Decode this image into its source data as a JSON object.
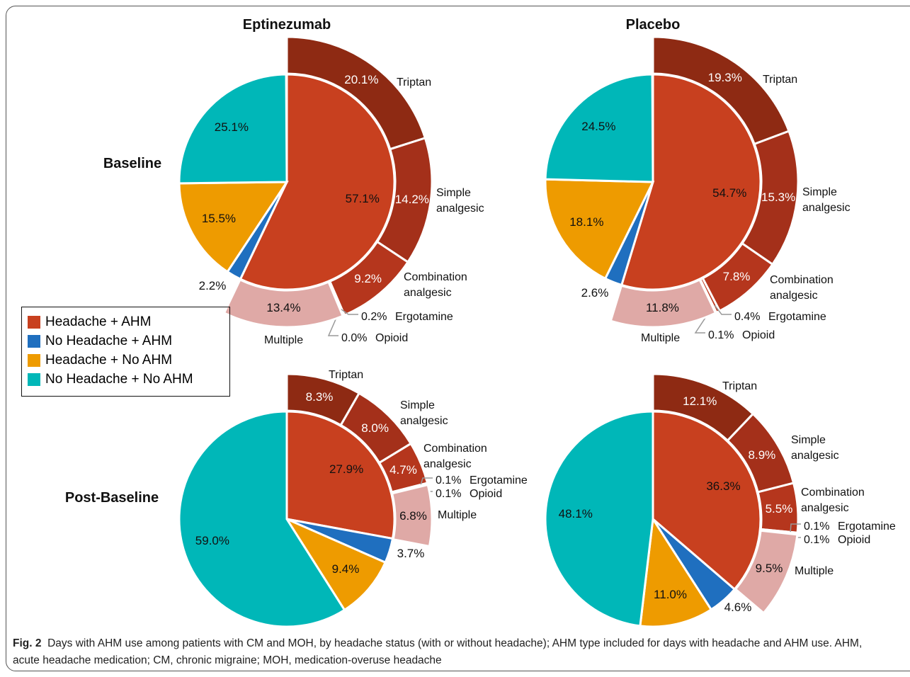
{
  "chart_data": {
    "type": "pie-of-pie",
    "columns": [
      "Eptinezumab",
      "Placebo"
    ],
    "rows": [
      "Baseline",
      "Post-Baseline"
    ],
    "categories": [
      "Headache + AHM",
      "No Headache + AHM",
      "Headache + No AHM",
      "No Headache + No AHM"
    ],
    "colors": [
      "#c8401f",
      "#1f6fbf",
      "#ee9b00",
      "#00b7b8"
    ],
    "breakdown_categories": [
      "Triptan",
      "Simple analgesic",
      "Combination analgesic",
      "Ergotamine",
      "Opioid",
      "Multiple"
    ],
    "breakdown_colors": [
      "#8e2a13",
      "#a4301a",
      "#b5361d",
      "#bb391e",
      "#c03c20",
      "#dfa9a6"
    ],
    "panels": [
      {
        "values": [
          57.1,
          2.2,
          15.5,
          25.1
        ],
        "value_labels": [
          "57.1%",
          "2.2%",
          "15.5%",
          "25.1%"
        ],
        "breakdown": [
          20.1,
          14.2,
          9.2,
          0.2,
          0.0,
          13.4
        ],
        "breakdown_labels": [
          "20.1%",
          "14.2%",
          "9.2%",
          "0.2%",
          "0.0%",
          "13.4%"
        ]
      },
      {
        "values": [
          54.7,
          2.6,
          18.1,
          24.5
        ],
        "value_labels": [
          "54.7%",
          "2.6%",
          "18.1%",
          "24.5%"
        ],
        "breakdown": [
          19.3,
          15.3,
          7.8,
          0.4,
          0.1,
          11.8
        ],
        "breakdown_labels": [
          "19.3%",
          "15.3%",
          "7.8%",
          "0.4%",
          "0.1%",
          "11.8%"
        ]
      },
      {
        "values": [
          27.9,
          3.7,
          9.4,
          59.0
        ],
        "value_labels": [
          "27.9%",
          "3.7%",
          "9.4%",
          "59.0%"
        ],
        "breakdown": [
          8.3,
          8.0,
          4.7,
          0.1,
          0.1,
          6.8
        ],
        "breakdown_labels": [
          "8.3%",
          "8.0%",
          "4.7%",
          "0.1%",
          "0.1%",
          "6.8%"
        ]
      },
      {
        "values": [
          36.3,
          4.6,
          11.0,
          48.1
        ],
        "value_labels": [
          "36.3%",
          "4.6%",
          "11.0%",
          "48.1%"
        ],
        "breakdown": [
          12.1,
          8.9,
          5.5,
          0.1,
          0.1,
          9.5
        ],
        "breakdown_labels": [
          "12.1%",
          "8.9%",
          "5.5%",
          "0.1%",
          "0.1%",
          "9.5%"
        ]
      }
    ]
  },
  "caption": {
    "label": "Fig. 2",
    "text": "Days with AHM use among patients with CM and MOH, by headache status (with or without headache); AHM type included for days with headache and AHM use. AHM, acute headache medication; CM, chronic migraine; MOH, medication-overuse headache"
  }
}
